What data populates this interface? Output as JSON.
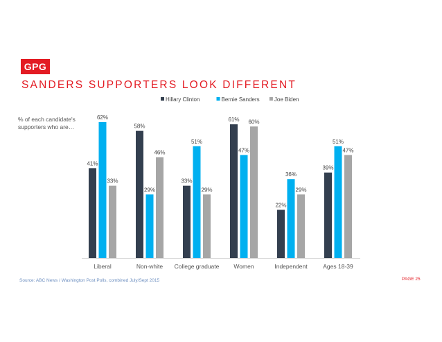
{
  "brand": {
    "logo_text": "GPG"
  },
  "page": {
    "title": "SANDERS SUPPORTERS LOOK DIFFERENT",
    "subtitle": "% of each candidate's supporters who are…",
    "source": "Source: ABC News / Washington Post Polls, combined July/Sept 2015",
    "page_number": "PAGE 25"
  },
  "chart_data": {
    "type": "bar",
    "categories": [
      "Liberal",
      "Non-white",
      "College graduate",
      "Women",
      "Independent",
      "Ages 18-39"
    ],
    "series": [
      {
        "name": "Hillary Clinton",
        "color": "#333f4f",
        "values": [
          41,
          58,
          33,
          61,
          22,
          39
        ]
      },
      {
        "name": "Bernie Sanders",
        "color": "#00b0f0",
        "values": [
          62,
          29,
          51,
          47,
          36,
          51
        ]
      },
      {
        "name": "Joe Biden",
        "color": "#a6a6a6",
        "values": [
          33,
          46,
          29,
          60,
          29,
          47
        ]
      }
    ],
    "value_suffix": "%",
    "ylim": [
      0,
      62
    ],
    "legend_position": "top",
    "grid": false
  }
}
